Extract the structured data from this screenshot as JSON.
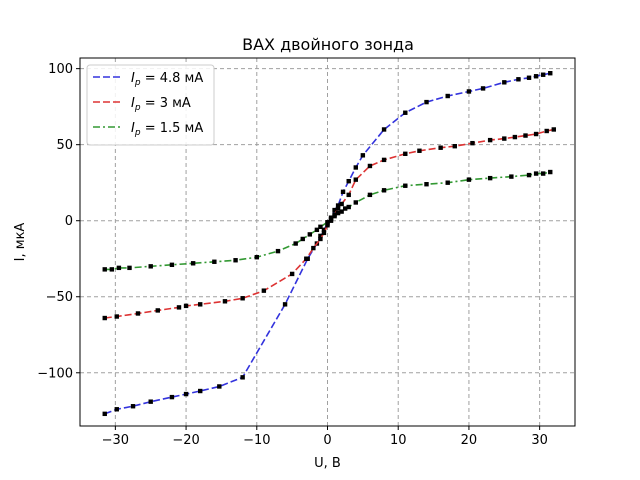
{
  "chart_data": {
    "type": "line",
    "title": "ВАХ двойного зонда",
    "xlabel": "U, В",
    "ylabel": "I, мкА",
    "xlim": [
      -35,
      35
    ],
    "ylim": [
      -135,
      107
    ],
    "xticks": [
      -30,
      -20,
      -10,
      0,
      10,
      20,
      30
    ],
    "yticks": [
      -100,
      -50,
      0,
      50,
      100
    ],
    "ytick_labels": [
      "−100",
      "−50",
      "0",
      "50",
      "100"
    ],
    "xtick_labels": [
      "−30",
      "−20",
      "−10",
      "0",
      "10",
      "20",
      "30"
    ],
    "grid": true,
    "legend_position": "top-left",
    "series": [
      {
        "name": "I_p = 4.8 мА",
        "label_sub": "p",
        "label_rest": " = 4.8 мА",
        "color": "#3333dd",
        "dash": "dashed",
        "x": [
          -31.5,
          -29.8,
          -27.5,
          -25,
          -22,
          -20,
          -18,
          -15.3,
          -12,
          -6,
          -2.8,
          -1.5,
          -1,
          -0.5,
          0,
          0.5,
          1,
          1.5,
          2.2,
          3,
          4,
          5,
          8,
          11,
          14,
          17,
          20,
          22,
          25,
          27,
          28.5,
          29.5,
          30.5,
          31.5
        ],
        "y": [
          -127,
          -124,
          -122,
          -119,
          -116,
          -114,
          -112,
          -109,
          -103,
          -55,
          -25,
          -15,
          -10,
          -6,
          -2,
          2,
          7,
          10,
          19,
          26,
          35,
          43,
          60,
          71,
          78,
          82,
          85,
          87,
          91,
          93,
          94,
          95,
          96,
          97
        ]
      },
      {
        "name": "I_p = 3 мА",
        "label_sub": "p",
        "label_rest": " = 3 мА",
        "color": "#dd3333",
        "dash": "dashed",
        "x": [
          -31.5,
          -29.8,
          -26.8,
          -24,
          -21,
          -20,
          -18,
          -14.5,
          -12,
          -9,
          -5,
          -3,
          -2,
          -1,
          -0.5,
          0,
          0.5,
          1,
          1.5,
          2,
          3,
          4,
          6,
          8,
          11,
          13,
          16,
          18,
          20.5,
          23,
          25,
          26.5,
          28,
          29.5,
          31,
          32
        ],
        "y": [
          -64,
          -63,
          -61,
          -59,
          -57,
          -56,
          -55,
          -53,
          -51,
          -46,
          -35,
          -25,
          -18,
          -12,
          -8,
          -3,
          0,
          4,
          8,
          11,
          17,
          27,
          36,
          40,
          44,
          46,
          48,
          49,
          51,
          53,
          54,
          55,
          56,
          57,
          59,
          60
        ]
      },
      {
        "name": "I_p = 1.5 мА",
        "label_sub": "p",
        "label_rest": " = 1.5 мА",
        "color": "#339933",
        "dash": "dashdot",
        "x": [
          -31.5,
          -30.5,
          -29.5,
          -28,
          -25,
          -22,
          -19,
          -16,
          -13,
          -10,
          -7,
          -4.5,
          -3.5,
          -2.5,
          -1.5,
          -1,
          0,
          0.5,
          1,
          1.5,
          2,
          2.5,
          3,
          4,
          6,
          8,
          11,
          14,
          17,
          20,
          23,
          26,
          28.5,
          29.5,
          30.5,
          31.5
        ],
        "y": [
          -32,
          -32,
          -31,
          -31,
          -30,
          -29,
          -28,
          -27,
          -26,
          -24,
          -20,
          -15,
          -12,
          -9,
          -6,
          -4,
          -1,
          1,
          3,
          5,
          6,
          8,
          9,
          12,
          17,
          20,
          23,
          24,
          25,
          27,
          28,
          29,
          30,
          31,
          31,
          32
        ]
      }
    ]
  }
}
